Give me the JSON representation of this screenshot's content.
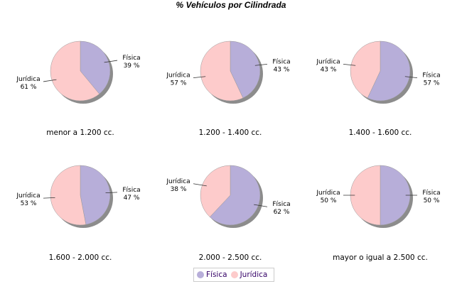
{
  "chart_data": {
    "type": "pie",
    "title": "% Vehículos por Cilindrada",
    "legend": {
      "position": "bottom",
      "entries": [
        "Física",
        "Jurídica"
      ]
    },
    "colors": {
      "Física": "#b7aed9",
      "Jurídica": "#fdcbcb",
      "shadow": "#8c8c8c"
    },
    "charts": [
      {
        "label": "menor a 1.200 cc.",
        "values": {
          "Física": 39,
          "Jurídica": 61
        }
      },
      {
        "label": "1.200 - 1.400 cc.",
        "values": {
          "Física": 43,
          "Jurídica": 57
        }
      },
      {
        "label": "1.400 - 1.600 cc.",
        "values": {
          "Física": 57,
          "Jurídica": 43
        }
      },
      {
        "label": "1.600 - 2.000 cc.",
        "values": {
          "Física": 47,
          "Jurídica": 53
        }
      },
      {
        "label": "2.000 - 2.500 cc.",
        "values": {
          "Física": 62,
          "Jurídica": 38
        }
      },
      {
        "label": "mayor o igual a 2.500 cc.",
        "values": {
          "Física": 50,
          "Jurídica": 50
        }
      }
    ]
  }
}
